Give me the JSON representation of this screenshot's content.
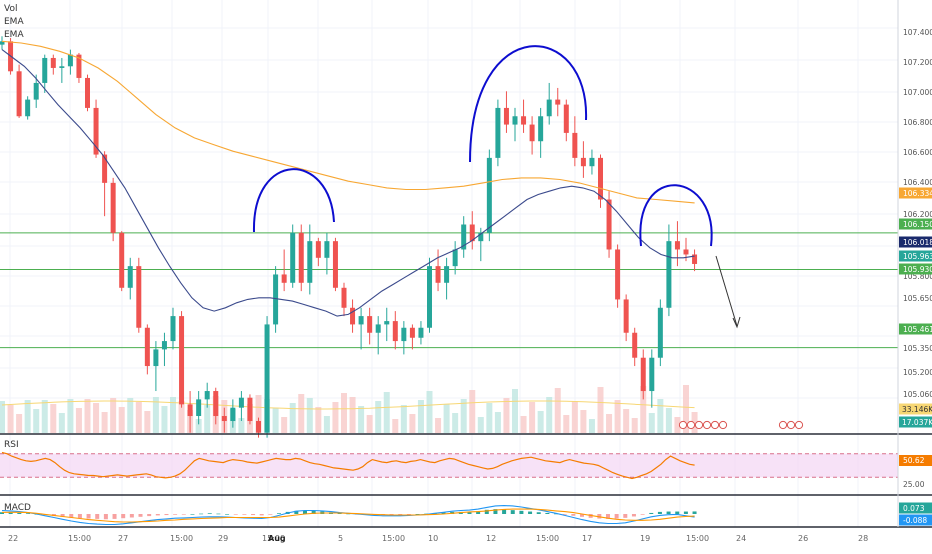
{
  "indicators": {
    "vol_label": "Vol",
    "ema1_label": "EMA",
    "ema2_label": "EMA",
    "rsi_label": "RSI",
    "macd_label": "MACD"
  },
  "colors": {
    "up": "#26a69a",
    "down": "#ef5350",
    "ema_fast": "#3b4a8c",
    "ema_slow": "#f7a733",
    "level": "#4caf50",
    "pattern": "#0d0dcf",
    "rsi": "#f57c00",
    "rsi_band": "#f3d6f3",
    "macd_line": "#2196f3",
    "signal_line": "#ff9800"
  },
  "chart_data": {
    "type": "candlestick",
    "y_range": [
      104.9,
      107.5
    ],
    "y_ticks": [
      "107.400",
      "107.200",
      "107.000",
      "106.800",
      "106.600",
      "106.400",
      "106.200",
      "105.800",
      "105.650",
      "105.350",
      "105.200",
      "105.060"
    ],
    "x_ticks": [
      "22",
      "15:00",
      "27",
      "15:00",
      "29",
      "15:00",
      "Aug",
      "5",
      "15:00",
      "10",
      "12",
      "15:00",
      "17",
      "19",
      "15:00",
      "24",
      "26",
      "28"
    ],
    "price_tags": [
      {
        "label": "106.334",
        "value": 106.334,
        "color": "#f7a733"
      },
      {
        "label": "106.150",
        "value": 106.15,
        "color": "#4caf50"
      },
      {
        "label": "106.018",
        "value": 106.018,
        "color": "#1a2a6c"
      },
      {
        "label": "105.963",
        "value": 105.963,
        "color": "#26a69a"
      },
      {
        "label": "105.930",
        "value": 105.93,
        "color": "#4caf50"
      },
      {
        "label": "105.461",
        "value": 105.461,
        "color": "#4caf50"
      }
    ],
    "horizontal_levels": [
      106.15,
      105.93,
      105.461
    ],
    "vol_tags": [
      {
        "label": "33.146K",
        "color": "#f7d774"
      },
      {
        "label": "17.037K",
        "color": "#26a69a"
      }
    ],
    "rsi": {
      "tag": "50.62",
      "tick": "25.00"
    },
    "macd": {
      "tags": [
        {
          "label": "0.073",
          "color": "#26a69a"
        },
        {
          "label": "-0.088",
          "color": "#2196f3"
        }
      ]
    },
    "candles": [
      [
        107.28,
        107.33,
        107.25,
        107.3
      ],
      [
        107.3,
        107.32,
        107.1,
        107.12
      ],
      [
        107.12,
        107.16,
        106.84,
        106.85
      ],
      [
        106.85,
        106.97,
        106.83,
        106.95
      ],
      [
        106.95,
        107.1,
        106.9,
        107.05
      ],
      [
        107.05,
        107.22,
        106.99,
        107.2
      ],
      [
        107.2,
        107.22,
        107.1,
        107.14
      ],
      [
        107.14,
        107.2,
        107.05,
        107.15
      ],
      [
        107.15,
        107.25,
        107.1,
        107.22
      ],
      [
        107.22,
        107.23,
        107.05,
        107.08
      ],
      [
        107.08,
        107.1,
        106.88,
        106.9
      ],
      [
        106.9,
        106.95,
        106.6,
        106.62
      ],
      [
        106.62,
        106.64,
        106.25,
        106.45
      ],
      [
        106.45,
        106.48,
        106.1,
        106.15
      ],
      [
        106.15,
        106.16,
        105.8,
        105.82
      ],
      [
        105.82,
        106.0,
        105.75,
        105.95
      ],
      [
        105.95,
        106.0,
        105.55,
        105.58
      ],
      [
        105.58,
        105.6,
        105.3,
        105.35
      ],
      [
        105.35,
        105.5,
        105.2,
        105.45
      ],
      [
        105.45,
        105.55,
        105.35,
        105.5
      ],
      [
        105.5,
        105.7,
        105.45,
        105.65
      ],
      [
        105.65,
        105.68,
        105.1,
        105.12
      ],
      [
        105.12,
        105.2,
        104.95,
        105.05
      ],
      [
        105.05,
        105.2,
        105.0,
        105.15
      ],
      [
        105.15,
        105.25,
        105.1,
        105.2
      ],
      [
        105.2,
        105.22,
        105.0,
        105.05
      ],
      [
        105.05,
        105.1,
        104.95,
        105.02
      ],
      [
        105.02,
        105.15,
        104.98,
        105.1
      ],
      [
        105.1,
        105.2,
        105.02,
        105.16
      ],
      [
        105.16,
        105.18,
        105.0,
        105.02
      ],
      [
        105.02,
        105.04,
        104.92,
        104.95
      ],
      [
        104.95,
        105.65,
        104.92,
        105.6
      ],
      [
        105.6,
        105.95,
        105.55,
        105.9
      ],
      [
        105.9,
        106.05,
        105.8,
        105.85
      ],
      [
        105.85,
        106.2,
        105.82,
        106.15
      ],
      [
        106.15,
        106.2,
        105.8,
        105.85
      ],
      [
        105.85,
        106.2,
        105.78,
        106.1
      ],
      [
        106.1,
        106.12,
        105.95,
        106.0
      ],
      [
        106.0,
        106.15,
        105.9,
        106.1
      ],
      [
        106.1,
        106.12,
        105.8,
        105.82
      ],
      [
        105.82,
        105.85,
        105.65,
        105.7
      ],
      [
        105.7,
        105.75,
        105.55,
        105.6
      ],
      [
        105.6,
        105.7,
        105.45,
        105.65
      ],
      [
        105.65,
        105.7,
        105.48,
        105.55
      ],
      [
        105.55,
        105.65,
        105.42,
        105.6
      ],
      [
        105.6,
        105.7,
        105.5,
        105.62
      ],
      [
        105.62,
        105.68,
        105.45,
        105.5
      ],
      [
        105.5,
        105.62,
        105.42,
        105.58
      ],
      [
        105.58,
        105.6,
        105.45,
        105.52
      ],
      [
        105.52,
        105.62,
        105.48,
        105.58
      ],
      [
        105.58,
        106.0,
        105.55,
        105.95
      ],
      [
        105.95,
        106.05,
        105.8,
        105.85
      ],
      [
        105.85,
        106.0,
        105.75,
        105.95
      ],
      [
        105.95,
        106.1,
        105.9,
        106.05
      ],
      [
        106.05,
        106.25,
        106.0,
        106.2
      ],
      [
        106.2,
        106.28,
        106.05,
        106.1
      ],
      [
        106.1,
        106.18,
        105.98,
        106.15
      ],
      [
        106.15,
        106.65,
        106.1,
        106.6
      ],
      [
        106.6,
        106.95,
        106.55,
        106.9
      ],
      [
        106.9,
        107.0,
        106.75,
        106.8
      ],
      [
        106.8,
        106.9,
        106.7,
        106.85
      ],
      [
        106.85,
        106.95,
        106.75,
        106.8
      ],
      [
        106.8,
        106.85,
        106.62,
        106.7
      ],
      [
        106.7,
        106.9,
        106.6,
        106.85
      ],
      [
        106.85,
        107.05,
        106.8,
        106.95
      ],
      [
        106.95,
        107.02,
        106.85,
        106.92
      ],
      [
        106.92,
        106.95,
        106.7,
        106.75
      ],
      [
        106.75,
        106.85,
        106.55,
        106.6
      ],
      [
        106.6,
        106.7,
        106.48,
        106.55
      ],
      [
        106.55,
        106.65,
        106.5,
        106.6
      ],
      [
        106.6,
        106.62,
        106.3,
        106.35
      ],
      [
        106.35,
        106.4,
        106.0,
        106.05
      ],
      [
        106.05,
        106.08,
        105.7,
        105.75
      ],
      [
        105.75,
        105.78,
        105.5,
        105.55
      ],
      [
        105.55,
        105.58,
        105.35,
        105.4
      ],
      [
        105.4,
        105.45,
        105.15,
        105.2
      ],
      [
        105.2,
        105.45,
        105.1,
        105.4
      ],
      [
        105.4,
        105.75,
        105.35,
        105.7
      ],
      [
        105.7,
        106.2,
        105.65,
        106.1
      ],
      [
        106.1,
        106.22,
        105.95,
        106.05
      ],
      [
        106.05,
        106.12,
        105.98,
        106.02
      ],
      [
        106.02,
        106.05,
        105.92,
        105.963
      ]
    ],
    "ema_fast": [
      107.25,
      107.2,
      107.15,
      107.08,
      107.0,
      106.92,
      106.85,
      106.78,
      106.7,
      106.62,
      106.52,
      106.42,
      106.3,
      106.18,
      106.06,
      105.95,
      105.85,
      105.76,
      105.7,
      105.68,
      105.7,
      105.73,
      105.75,
      105.76,
      105.76,
      105.75,
      105.74,
      105.72,
      105.7,
      105.68,
      105.65,
      105.66,
      105.7,
      105.75,
      105.8,
      105.84,
      105.88,
      105.92,
      105.96,
      106.0,
      106.03,
      106.06,
      106.1,
      106.15,
      106.2,
      106.25,
      106.3,
      106.35,
      106.38,
      106.4,
      106.42,
      106.43,
      106.42,
      106.4,
      106.35,
      106.28,
      106.2,
      106.12,
      106.06,
      106.02,
      106.0,
      106.0,
      106.01
    ],
    "ema_slow": [
      107.3,
      107.29,
      107.27,
      107.24,
      107.2,
      107.14,
      107.06,
      106.96,
      106.86,
      106.78,
      106.72,
      106.68,
      106.64,
      106.61,
      106.58,
      106.55,
      106.52,
      106.49,
      106.46,
      106.44,
      106.42,
      106.41,
      106.41,
      106.42,
      106.43,
      106.45,
      106.47,
      106.48,
      106.48,
      106.47,
      106.45,
      106.42,
      106.39,
      106.36,
      106.35,
      106.34,
      106.33
    ],
    "rsi_values": [
      72,
      70,
      66,
      63,
      60,
      58,
      57,
      58,
      60,
      62,
      60,
      55,
      48,
      42,
      38,
      36,
      35,
      34,
      33,
      33,
      32,
      31,
      32,
      33,
      34,
      33,
      32,
      33,
      34,
      35,
      36,
      34,
      31,
      30,
      29,
      30,
      32,
      36,
      42,
      50,
      58,
      62,
      60,
      58,
      57,
      56,
      55,
      58,
      60,
      59,
      58,
      56,
      55,
      54,
      56,
      58,
      60,
      62,
      61,
      60,
      60,
      62,
      61,
      58,
      55,
      53,
      52,
      50,
      48,
      46,
      45,
      44,
      43,
      42,
      44,
      48,
      55,
      60,
      58,
      56,
      55,
      57,
      58,
      56,
      55,
      57,
      58,
      60,
      58,
      56,
      55,
      58,
      60,
      62,
      61,
      58,
      55,
      52,
      50,
      48,
      46,
      44,
      45,
      48,
      52,
      55,
      58,
      60,
      62,
      63,
      64,
      62,
      60,
      58,
      57,
      56,
      55,
      58,
      60,
      58,
      56,
      54,
      53,
      52,
      50,
      46,
      42,
      38,
      35,
      32,
      30,
      28,
      30,
      33,
      36,
      40,
      46,
      52,
      60,
      66,
      62,
      58,
      55,
      52,
      50.62
    ],
    "macd_hist": [
      0.05,
      0.04,
      0.03,
      0.02,
      0.0,
      -0.03,
      -0.06,
      -0.08,
      -0.1,
      -0.12,
      -0.13,
      -0.14,
      -0.15,
      -0.14,
      -0.12,
      -0.1,
      -0.08,
      -0.06,
      -0.04,
      -0.03,
      -0.02,
      -0.01,
      0.0,
      0.01,
      0.02,
      0.01,
      0.0,
      -0.01,
      -0.02,
      -0.03,
      -0.04,
      -0.02,
      0.02,
      0.06,
      0.09,
      0.1,
      0.09,
      0.07,
      0.05,
      0.03,
      0.01,
      -0.01,
      -0.02,
      -0.03,
      -0.03,
      -0.02,
      -0.02,
      -0.01,
      0.0,
      0.01,
      0.03,
      0.05,
      0.06,
      0.06,
      0.05,
      0.08,
      0.12,
      0.14,
      0.13,
      0.11,
      0.09,
      0.07,
      0.05,
      0.03,
      0.01,
      -0.02,
      -0.05,
      -0.08,
      -0.11,
      -0.13,
      -0.14,
      -0.13,
      -0.11,
      -0.07,
      -0.02,
      0.03,
      0.06,
      0.07,
      0.07,
      0.07,
      0.073
    ],
    "macd_line": [
      0.1,
      0.09,
      0.07,
      0.04,
      0.0,
      -0.05,
      -0.1,
      -0.15,
      -0.2,
      -0.24,
      -0.27,
      -0.29,
      -0.3,
      -0.3,
      -0.28,
      -0.25,
      -0.22,
      -0.19,
      -0.16,
      -0.14,
      -0.12,
      -0.11,
      -0.1,
      -0.09,
      -0.08,
      -0.08,
      -0.09,
      -0.1,
      -0.11,
      -0.12,
      -0.13,
      -0.1,
      -0.04,
      0.03,
      0.08,
      0.1,
      0.1,
      0.09,
      0.07,
      0.04,
      0.02,
      0.0,
      -0.02,
      -0.04,
      -0.05,
      -0.05,
      -0.05,
      -0.04,
      -0.03,
      -0.01,
      0.02,
      0.05,
      0.08,
      0.1,
      0.11,
      0.14,
      0.19,
      0.23,
      0.24,
      0.23,
      0.2,
      0.16,
      0.12,
      0.07,
      0.02,
      -0.04,
      -0.1,
      -0.16,
      -0.21,
      -0.25,
      -0.27,
      -0.27,
      -0.25,
      -0.2,
      -0.14,
      -0.08,
      -0.04,
      -0.02,
      -0.01,
      -0.05,
      -0.088
    ],
    "signal_line": [
      0.05,
      0.05,
      0.05,
      0.04,
      0.02,
      -0.01,
      -0.04,
      -0.07,
      -0.1,
      -0.13,
      -0.16,
      -0.18,
      -0.2,
      -0.22,
      -0.23,
      -0.23,
      -0.22,
      -0.21,
      -0.2,
      -0.18,
      -0.17,
      -0.15,
      -0.14,
      -0.13,
      -0.12,
      -0.11,
      -0.1,
      -0.1,
      -0.1,
      -0.1,
      -0.1,
      -0.1,
      -0.09,
      -0.06,
      -0.03,
      0.0,
      0.02,
      0.03,
      0.03,
      0.03,
      0.02,
      0.01,
      0.0,
      -0.01,
      -0.02,
      -0.03,
      -0.03,
      -0.03,
      -0.03,
      -0.02,
      -0.01,
      0.0,
      0.02,
      0.04,
      0.06,
      0.07,
      0.09,
      0.11,
      0.13,
      0.14,
      0.14,
      0.14,
      0.13,
      0.11,
      0.09,
      0.07,
      0.04,
      0.0,
      -0.04,
      -0.08,
      -0.12,
      -0.15,
      -0.17,
      -0.18,
      -0.18,
      -0.17,
      -0.15,
      -0.12,
      -0.09,
      -0.07,
      -0.06
    ]
  }
}
